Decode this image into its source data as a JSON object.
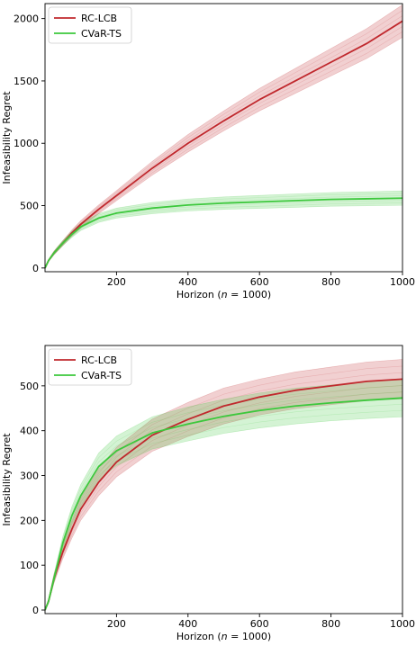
{
  "chart_data": [
    {
      "type": "line",
      "xlabel_prefix": "Horizon (",
      "xlabel_var": "n",
      "xlabel_suffix": " = 1000)",
      "ylabel": "Infeasibility Regret",
      "xlim": [
        0,
        1000
      ],
      "ylim": [
        -30,
        2120
      ],
      "xticks": [
        200,
        400,
        600,
        800,
        1000
      ],
      "yticks": [
        0,
        500,
        1000,
        1500,
        2000
      ],
      "legend_position": "top-left",
      "series": [
        {
          "name": "RC-LCB",
          "color": "#c0282d",
          "x": [
            0,
            10,
            25,
            50,
            75,
            100,
            150,
            200,
            300,
            400,
            500,
            600,
            700,
            800,
            900,
            1000
          ],
          "y": [
            0,
            60,
            120,
            200,
            280,
            350,
            470,
            580,
            800,
            1000,
            1180,
            1350,
            1500,
            1650,
            1800,
            1980
          ],
          "band_halfwidth": [
            0,
            8,
            15,
            20,
            25,
            30,
            35,
            40,
            55,
            70,
            80,
            90,
            100,
            110,
            120,
            130
          ]
        },
        {
          "name": "CVaR-TS",
          "color": "#3cc83c",
          "x": [
            0,
            10,
            25,
            50,
            75,
            100,
            150,
            200,
            300,
            400,
            500,
            600,
            700,
            800,
            900,
            1000
          ],
          "y": [
            0,
            60,
            120,
            200,
            270,
            330,
            400,
            440,
            480,
            505,
            520,
            530,
            540,
            550,
            555,
            560
          ],
          "band_halfwidth": [
            0,
            8,
            15,
            20,
            25,
            30,
            35,
            40,
            45,
            48,
            50,
            52,
            54,
            55,
            56,
            58
          ]
        }
      ]
    },
    {
      "type": "line",
      "xlabel_prefix": "Horizon (",
      "xlabel_var": "n",
      "xlabel_suffix": " = 1000)",
      "ylabel": "Infeasibility Regret",
      "xlim": [
        0,
        1000
      ],
      "ylim": [
        -8,
        590
      ],
      "xticks": [
        200,
        400,
        600,
        800,
        1000
      ],
      "yticks": [
        0,
        100,
        200,
        300,
        400,
        500
      ],
      "legend_position": "top-left",
      "series": [
        {
          "name": "RC-LCB",
          "color": "#c0282d",
          "x": [
            0,
            10,
            25,
            50,
            75,
            100,
            150,
            200,
            300,
            400,
            500,
            600,
            700,
            800,
            900,
            1000
          ],
          "y": [
            0,
            20,
            70,
            130,
            180,
            225,
            285,
            330,
            390,
            425,
            455,
            475,
            490,
            500,
            510,
            515
          ],
          "band_halfwidth": [
            0,
            5,
            10,
            15,
            20,
            25,
            30,
            33,
            36,
            38,
            40,
            40,
            41,
            42,
            43,
            44
          ]
        },
        {
          "name": "CVaR-TS",
          "color": "#3cc83c",
          "x": [
            0,
            10,
            25,
            50,
            75,
            100,
            150,
            200,
            300,
            400,
            500,
            600,
            700,
            800,
            900,
            1000
          ],
          "y": [
            0,
            20,
            70,
            150,
            210,
            255,
            320,
            355,
            395,
            415,
            432,
            445,
            455,
            462,
            468,
            473
          ],
          "band_halfwidth": [
            0,
            5,
            10,
            15,
            20,
            25,
            30,
            33,
            36,
            38,
            38,
            39,
            40,
            40,
            41,
            42
          ]
        }
      ]
    }
  ]
}
